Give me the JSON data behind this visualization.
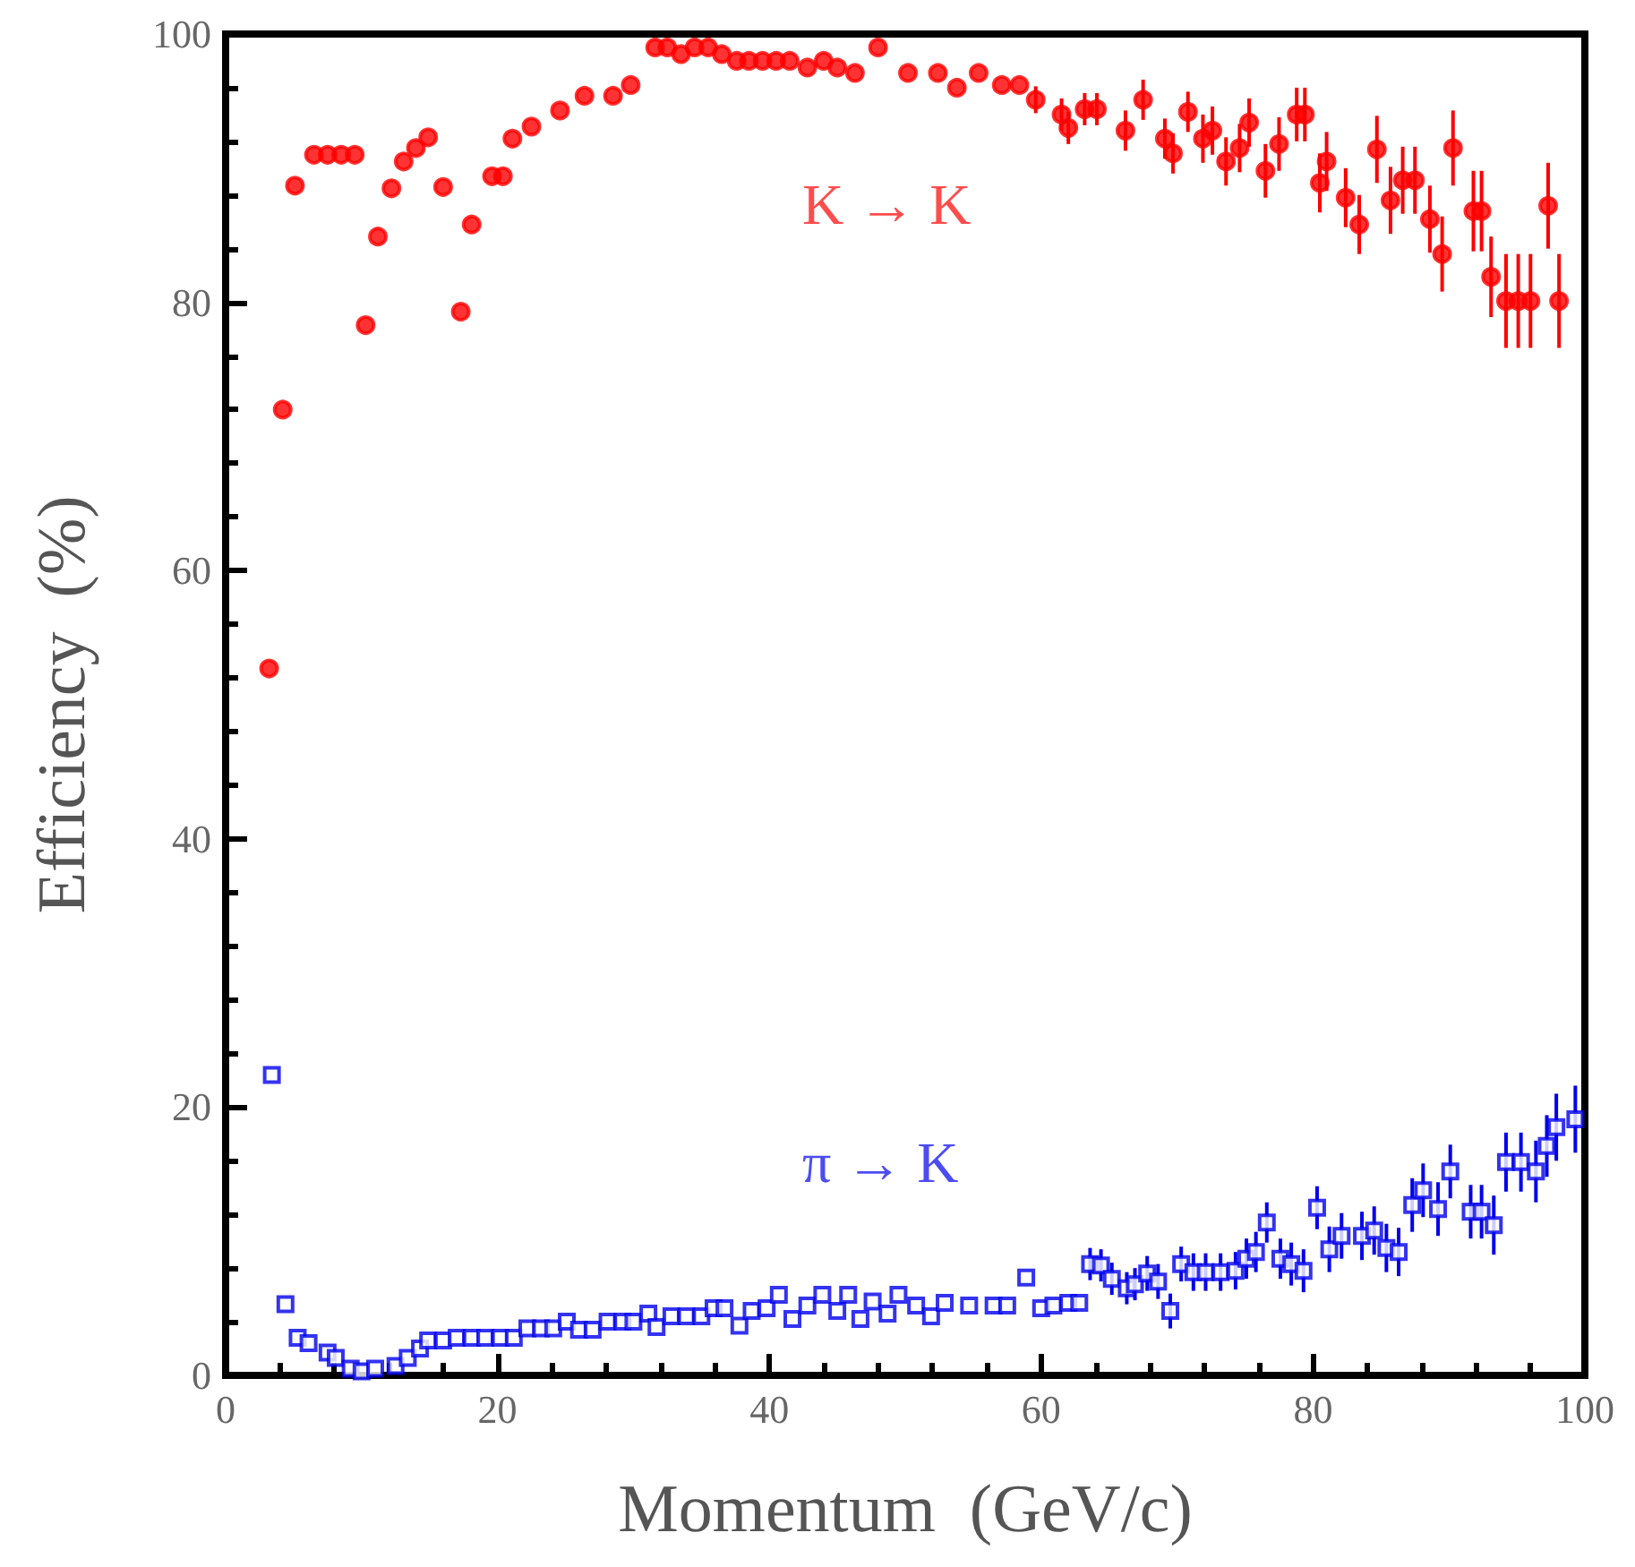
{
  "chart_data": {
    "type": "scatter",
    "xlabel": "Momentum  (GeV/c)",
    "ylabel": "Efficiency  (%)",
    "xlim": [
      0,
      100
    ],
    "ylim": [
      0,
      100
    ],
    "xticks": [
      0,
      20,
      40,
      60,
      80,
      100
    ],
    "yticks": [
      0,
      20,
      40,
      60,
      80,
      100
    ],
    "grid": false,
    "legend": false,
    "series": [
      {
        "name": "K → K",
        "color": "#ff0000",
        "marker": "circle",
        "x": [
          3.2,
          4.2,
          5.1,
          6.5,
          7.5,
          8.5,
          9.5,
          10.3,
          11.2,
          12.2,
          13.1,
          14.0,
          14.9,
          16.0,
          17.3,
          18.1,
          19.6,
          20.4,
          21.1,
          22.5,
          24.6,
          26.4,
          28.5,
          29.8,
          31.6,
          32.5,
          33.5,
          34.5,
          35.5,
          36.5,
          37.6,
          38.5,
          39.5,
          40.5,
          41.5,
          42.8,
          44,
          45,
          46.3,
          48,
          50.2,
          52.4,
          53.8,
          55.4,
          57.1,
          58.4,
          59.6,
          61.5,
          62,
          63.2,
          64.1,
          66.2,
          67.5,
          69.1,
          69.7,
          70.8,
          71.9,
          72.6,
          73.6,
          74.6,
          75.3,
          76.5,
          77.5,
          78.8,
          79.4,
          80.5,
          81,
          82.4,
          83.4,
          84.7,
          85.7,
          86.6,
          87.5,
          88.6,
          89.5,
          90.3,
          91.8,
          92.4,
          93.1,
          94.2,
          95.1,
          96,
          97.3,
          98.1
        ],
        "values": [
          52.7,
          72,
          88.7,
          91,
          91,
          91,
          91,
          78.3,
          84.9,
          88.5,
          90.5,
          91.5,
          92.3,
          88.6,
          79.3,
          85.8,
          89.4,
          89.4,
          92.2,
          93.1,
          94.3,
          95.4,
          95.4,
          96.2,
          99,
          99,
          98.5,
          99,
          99,
          98.5,
          98,
          98,
          98,
          98,
          98,
          97.5,
          98,
          97.5,
          97.1,
          99,
          97.1,
          97.1,
          96,
          97.1,
          96.2,
          96.2,
          95.1,
          94,
          93,
          94.4,
          94.4,
          92.8,
          95.1,
          92.2,
          91.1,
          94.2,
          92.2,
          92.8,
          90.5,
          91.5,
          93.4,
          89.8,
          91.8,
          94,
          94,
          88.9,
          90.5,
          87.8,
          85.8,
          91.4,
          87.6,
          89.1,
          89.1,
          86.2,
          83.6,
          91.5,
          86.8,
          86.8,
          81.9,
          80.1,
          80.1,
          80.1,
          87.2,
          80.1
        ],
        "errors": [
          null,
          null,
          null,
          null,
          null,
          null,
          null,
          null,
          null,
          null,
          null,
          null,
          null,
          null,
          null,
          null,
          null,
          null,
          null,
          null,
          null,
          null,
          null,
          null,
          null,
          null,
          null,
          null,
          null,
          null,
          null,
          null,
          null,
          null,
          null,
          null,
          null,
          null,
          null,
          null,
          null,
          null,
          null,
          null,
          null,
          null,
          1,
          1.2,
          1.2,
          1.2,
          1.2,
          1.5,
          1.5,
          1.5,
          1.5,
          1.5,
          1.8,
          1.8,
          1.8,
          1.8,
          1.8,
          2,
          2,
          2,
          2,
          2.2,
          2.2,
          2.2,
          2.2,
          2.5,
          2.5,
          2.5,
          2.5,
          2.5,
          2.8,
          2.8,
          3,
          3,
          3,
          3.5,
          3.5,
          3.5,
          3.2,
          3.5
        ]
      },
      {
        "name": "π → K",
        "color": "#0000ee",
        "marker": "square",
        "x": [
          3.4,
          4.4,
          5.3,
          6.1,
          7.5,
          8.1,
          9.2,
          10,
          11,
          12.5,
          13.4,
          14.3,
          14.9,
          16,
          17,
          18.1,
          19.1,
          20.2,
          21.2,
          22.2,
          23.2,
          24.1,
          25.1,
          26,
          27,
          28.1,
          29.2,
          30,
          31.1,
          31.7,
          32.8,
          33.9,
          35,
          35.9,
          36.7,
          37.8,
          38.7,
          39.8,
          40.7,
          41.7,
          42.8,
          43.9,
          45,
          45.8,
          46.7,
          47.6,
          48.7,
          49.5,
          50.8,
          51.9,
          52.9,
          54.7,
          56.5,
          57.5,
          58.9,
          60,
          60.9,
          62,
          62.8,
          63.6,
          64.4,
          65.2,
          66.3,
          66.9,
          67.8,
          68.6,
          69.5,
          70.3,
          71.2,
          72.1,
          73.2,
          74.3,
          75.1,
          75.8,
          76.6,
          77.6,
          78.4,
          79.3,
          80.3,
          81.2,
          82.1,
          83.6,
          84.5,
          85.4,
          86.3,
          87.3,
          88.1,
          89.2,
          90.1,
          91.6,
          92.4,
          93.3,
          94.2,
          95.3,
          96.4,
          97.2,
          97.9,
          99.3
        ],
        "values": [
          22.4,
          5.3,
          2.8,
          2.4,
          1.7,
          1.3,
          0.5,
          0.3,
          0.5,
          0.7,
          1.3,
          2,
          2.6,
          2.6,
          2.8,
          2.8,
          2.8,
          2.8,
          2.8,
          3.5,
          3.5,
          3.5,
          4,
          3.4,
          3.4,
          4,
          4,
          4,
          4.6,
          3.6,
          4.4,
          4.4,
          4.4,
          5,
          5,
          3.7,
          4.8,
          5,
          6,
          4.2,
          5.2,
          6,
          4.8,
          6,
          4.2,
          5.5,
          4.6,
          6,
          5.2,
          4.4,
          5.4,
          5.2,
          5.2,
          5.2,
          7.3,
          5,
          5.2,
          5.4,
          5.4,
          8.3,
          8.2,
          7.2,
          6.5,
          6.8,
          7.6,
          7,
          4.8,
          8.3,
          7.7,
          7.7,
          7.7,
          7.8,
          8.7,
          9.2,
          11.4,
          8.7,
          8.3,
          7.8,
          12.5,
          9.4,
          10.4,
          10.4,
          10.8,
          9.5,
          9.2,
          12.7,
          13.8,
          12.4,
          15.2,
          12.2,
          12.2,
          11.2,
          15.9,
          15.9,
          15.2,
          17.1,
          18.5,
          19.1
        ],
        "errors": [
          null,
          null,
          null,
          null,
          null,
          null,
          null,
          null,
          null,
          null,
          null,
          null,
          null,
          null,
          null,
          null,
          null,
          null,
          null,
          null,
          null,
          null,
          null,
          null,
          null,
          null,
          null,
          null,
          null,
          null,
          null,
          null,
          null,
          null,
          null,
          null,
          null,
          null,
          null,
          null,
          null,
          null,
          null,
          null,
          null,
          null,
          null,
          null,
          null,
          null,
          null,
          null,
          null,
          null,
          null,
          null,
          null,
          null,
          null,
          1.2,
          1.2,
          1.2,
          1.2,
          1.2,
          1.3,
          1.3,
          1.3,
          1.3,
          1.4,
          1.4,
          1.4,
          1.4,
          1.5,
          1.5,
          1.5,
          1.5,
          1.6,
          1.6,
          1.6,
          1.7,
          1.7,
          1.8,
          1.8,
          1.8,
          1.8,
          2,
          2,
          2,
          2,
          2,
          2,
          2.2,
          2.2,
          2.2,
          2.3,
          2.3,
          2.5,
          2.5
        ]
      }
    ]
  }
}
